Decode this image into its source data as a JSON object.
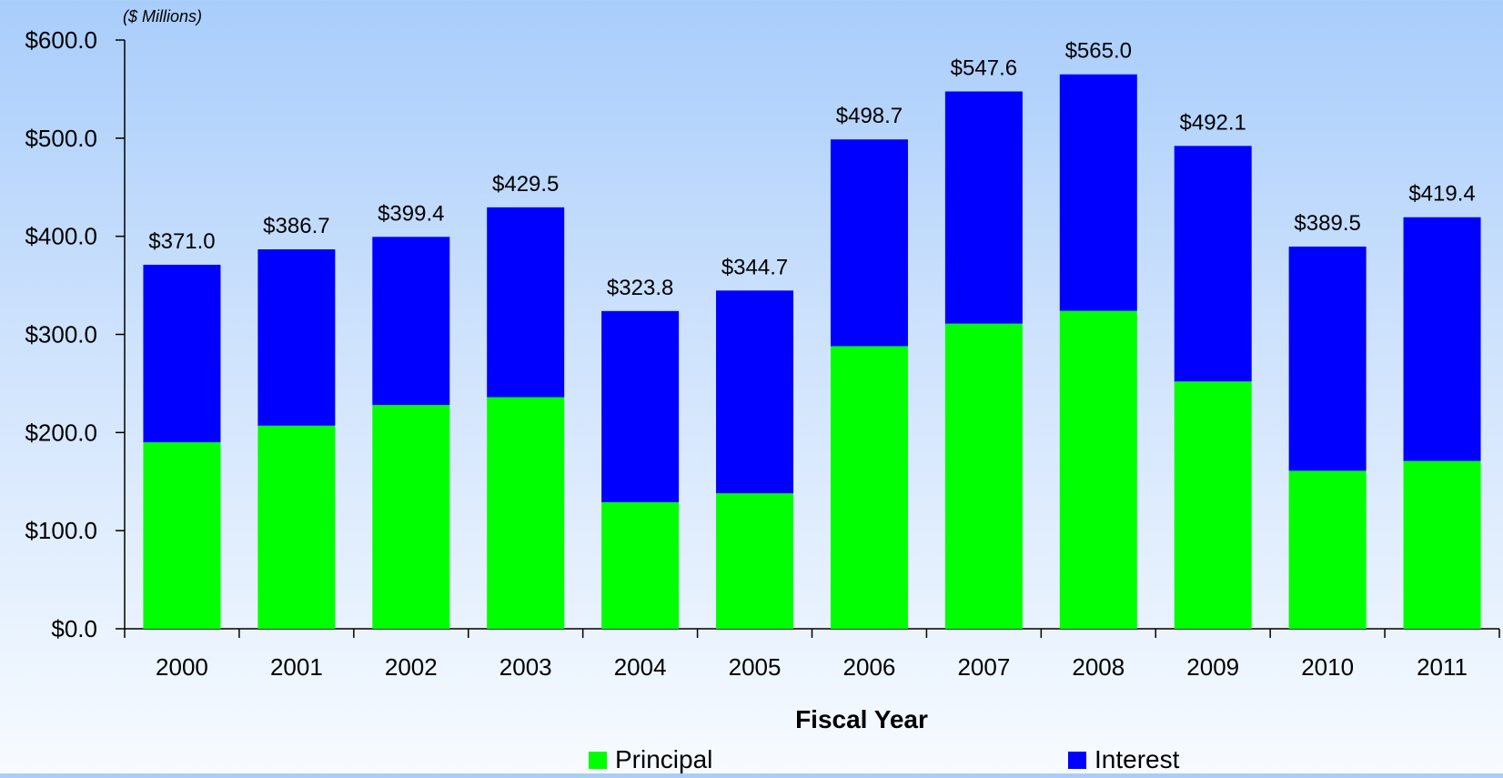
{
  "chart_data": {
    "type": "bar",
    "stacked": true,
    "unit_note": "($ Millions)",
    "xlabel": "Fiscal Year",
    "ylabel": "",
    "ylim": [
      0,
      600
    ],
    "yticks": [
      "$0.0",
      "$100.0",
      "$200.0",
      "$300.0",
      "$400.0",
      "$500.0",
      "$600.0"
    ],
    "ytick_values": [
      0,
      100,
      200,
      300,
      400,
      500,
      600
    ],
    "categories": [
      "2000",
      "2001",
      "2002",
      "2003",
      "2004",
      "2005",
      "2006",
      "2007",
      "2008",
      "2009",
      "2010",
      "2011"
    ],
    "series": [
      {
        "name": "Principal",
        "color": "#00ff00",
        "values": [
          190,
          207,
          228,
          236,
          129,
          138,
          288,
          311,
          324,
          252,
          161,
          171
        ]
      },
      {
        "name": "Interest",
        "color": "#0000ff",
        "values": [
          181,
          179.7,
          171.4,
          193.5,
          194.8,
          206.7,
          210.7,
          236.6,
          241,
          240.1,
          228.5,
          248.4
        ]
      }
    ],
    "totals": [
      371.0,
      386.7,
      399.4,
      429.5,
      323.8,
      344.7,
      498.7,
      547.6,
      565.0,
      492.1,
      389.5,
      419.4
    ],
    "total_labels": [
      "$371.0",
      "$386.7",
      "$399.4",
      "$429.5",
      "$323.8",
      "$344.7",
      "$498.7",
      "$547.6",
      "$565.0",
      "$492.1",
      "$389.5",
      "$419.4"
    ],
    "grid": false,
    "legend_position": "bottom"
  }
}
